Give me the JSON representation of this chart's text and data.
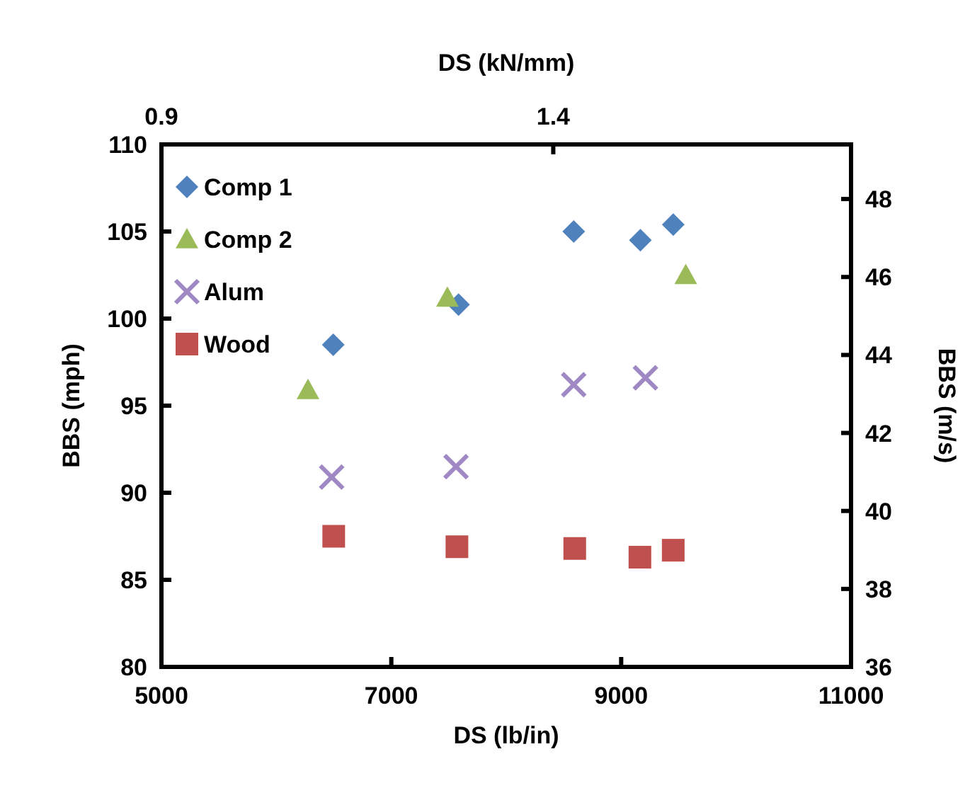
{
  "chart_data": {
    "type": "scatter",
    "xlabel": "DS (lb/in)",
    "ylabel": "BBS (mph)",
    "y2label": "BBS (m/s)",
    "x2label": "DS (kN/mm)",
    "xlim": [
      5000,
      11000
    ],
    "xticks": [
      5000,
      7000,
      9000,
      11000
    ],
    "ylim": [
      80,
      110
    ],
    "yticks": [
      80,
      85,
      90,
      95,
      100,
      105,
      110
    ],
    "y2lim": [
      36,
      49.4
    ],
    "y2ticks": [
      36,
      38,
      40,
      42,
      44,
      46,
      48
    ],
    "x2lim": [
      0.9,
      1.78
    ],
    "x2ticks": [
      0.9,
      1.4
    ],
    "grid": false,
    "legend": "top left",
    "series": [
      {
        "name": "Comp 1",
        "color": "#4f81bd",
        "marker": "diamond",
        "x": [
          6495,
          7585,
          8587,
          9167,
          9453
        ],
        "values": [
          98.5,
          100.8,
          105.0,
          104.5,
          105.4
        ]
      },
      {
        "name": "Comp 2",
        "color": "#9bbb59",
        "marker": "triangle",
        "x": [
          6275,
          7488,
          9562
        ],
        "values": [
          95.9,
          101.2,
          102.5
        ]
      },
      {
        "name": "Alum",
        "color": "#9f88c4",
        "marker": "cross",
        "x": [
          6481,
          7563,
          8587,
          9211
        ],
        "values": [
          90.9,
          91.5,
          96.2,
          96.6
        ]
      },
      {
        "name": "Wood",
        "color": "#c0504d",
        "marker": "square",
        "x": [
          6499,
          7571,
          8596,
          9163,
          9453
        ],
        "values": [
          87.5,
          86.9,
          86.8,
          86.3,
          86.7
        ]
      }
    ]
  }
}
